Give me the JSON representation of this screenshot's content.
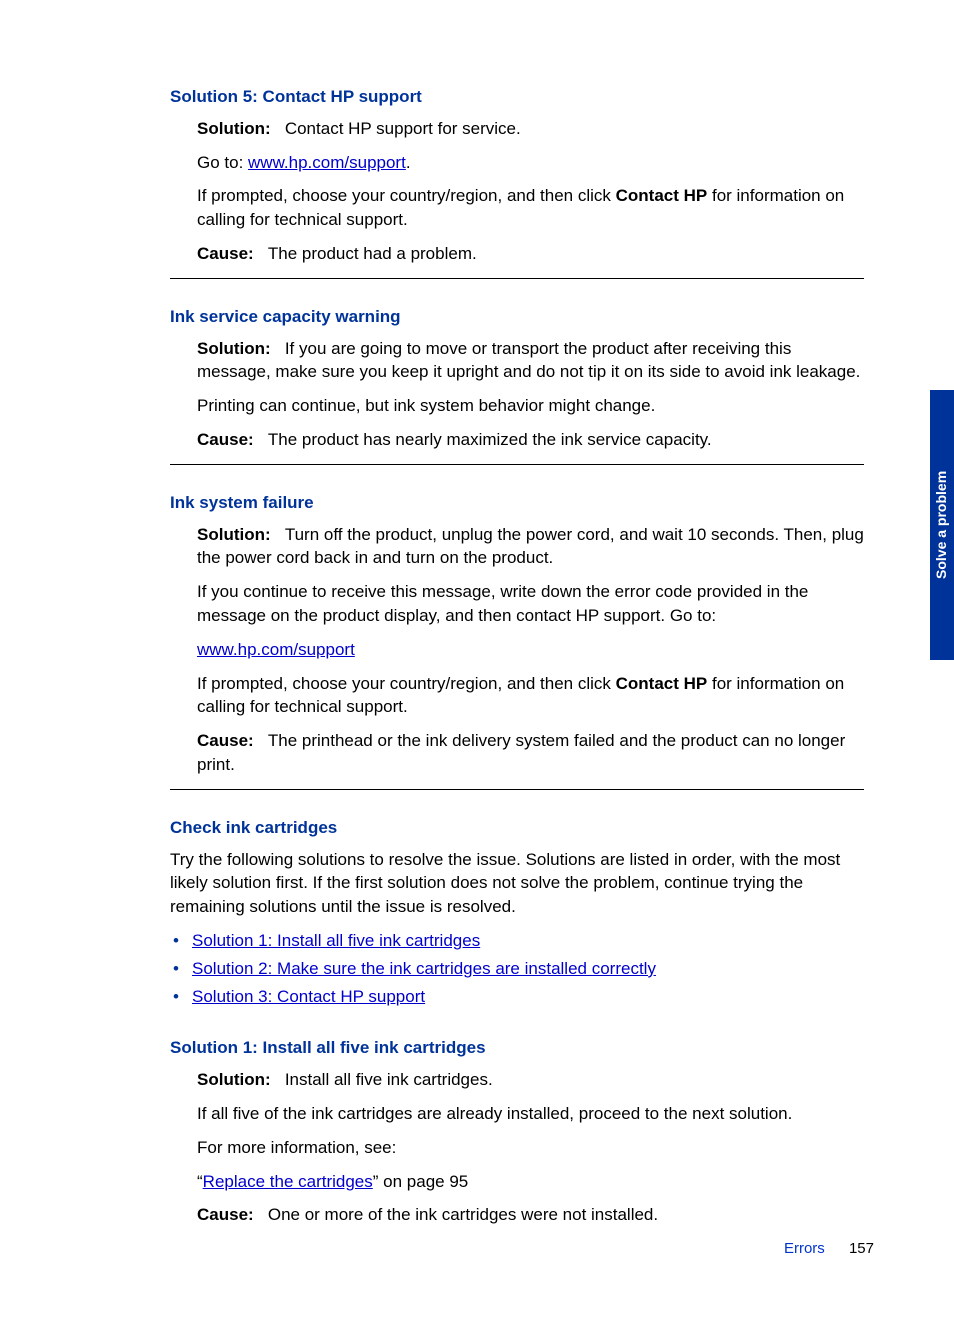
{
  "sections": {
    "solution5": {
      "heading": "Solution 5: Contact HP support",
      "solutionLabel": "Solution:",
      "solutionText": "Contact HP support for service.",
      "gotoText": "Go to: ",
      "gotoLink": "www.hp.com/support",
      "gotoEnd": ".",
      "promptPre": "If prompted, choose your country/region, and then click ",
      "promptBold": "Contact HP",
      "promptPost": " for information on calling for technical support.",
      "causeLabel": "Cause:",
      "causeText": "The product had a problem."
    },
    "inkWarning": {
      "heading": "Ink service capacity warning",
      "solutionLabel": "Solution:",
      "solutionText": "If you are going to move or transport the product after receiving this message, make sure you keep it upright and do not tip it on its side to avoid ink leakage.",
      "printingText": "Printing can continue, but ink system behavior might change.",
      "causeLabel": "Cause:",
      "causeText": "The product has nearly maximized the ink service capacity."
    },
    "inkFailure": {
      "heading": "Ink system failure",
      "solutionLabel": "Solution:",
      "solutionText": "Turn off the product, unplug the power cord, and wait 10 seconds. Then, plug the power cord back in and turn on the product.",
      "continueText": "If you continue to receive this message, write down the error code provided in the message on the product display, and then contact HP support. Go to:",
      "supportLink": "www.hp.com/support",
      "promptPre": "If prompted, choose your country/region, and then click ",
      "promptBold": "Contact HP",
      "promptPost": " for information on calling for technical support.",
      "causeLabel": "Cause:",
      "causeText": "The printhead or the ink delivery system failed and the product can no longer print."
    },
    "checkInk": {
      "heading": "Check ink cartridges",
      "intro": "Try the following solutions to resolve the issue. Solutions are listed in order, with the most likely solution first. If the first solution does not solve the problem, continue trying the remaining solutions until the issue is resolved.",
      "bullets": [
        "Solution 1: Install all five ink cartridges",
        "Solution 2: Make sure the ink cartridges are installed correctly",
        "Solution 3: Contact HP support"
      ]
    },
    "solution1": {
      "heading": "Solution 1: Install all five ink cartridges",
      "solutionLabel": "Solution:",
      "solutionText": "Install all five ink cartridges.",
      "ifText": "If all five of the ink cartridges are already installed, proceed to the next solution.",
      "moreInfo": "For more information, see:",
      "replaceLinkPre": "“",
      "replaceLink": "Replace the cartridges",
      "replaceLinkPost": "” on page 95",
      "causeLabel": "Cause:",
      "causeText": "One or more of the ink cartridges were not installed."
    }
  },
  "sidebar": "Solve a problem",
  "footer": {
    "label": "Errors",
    "page": "157"
  }
}
